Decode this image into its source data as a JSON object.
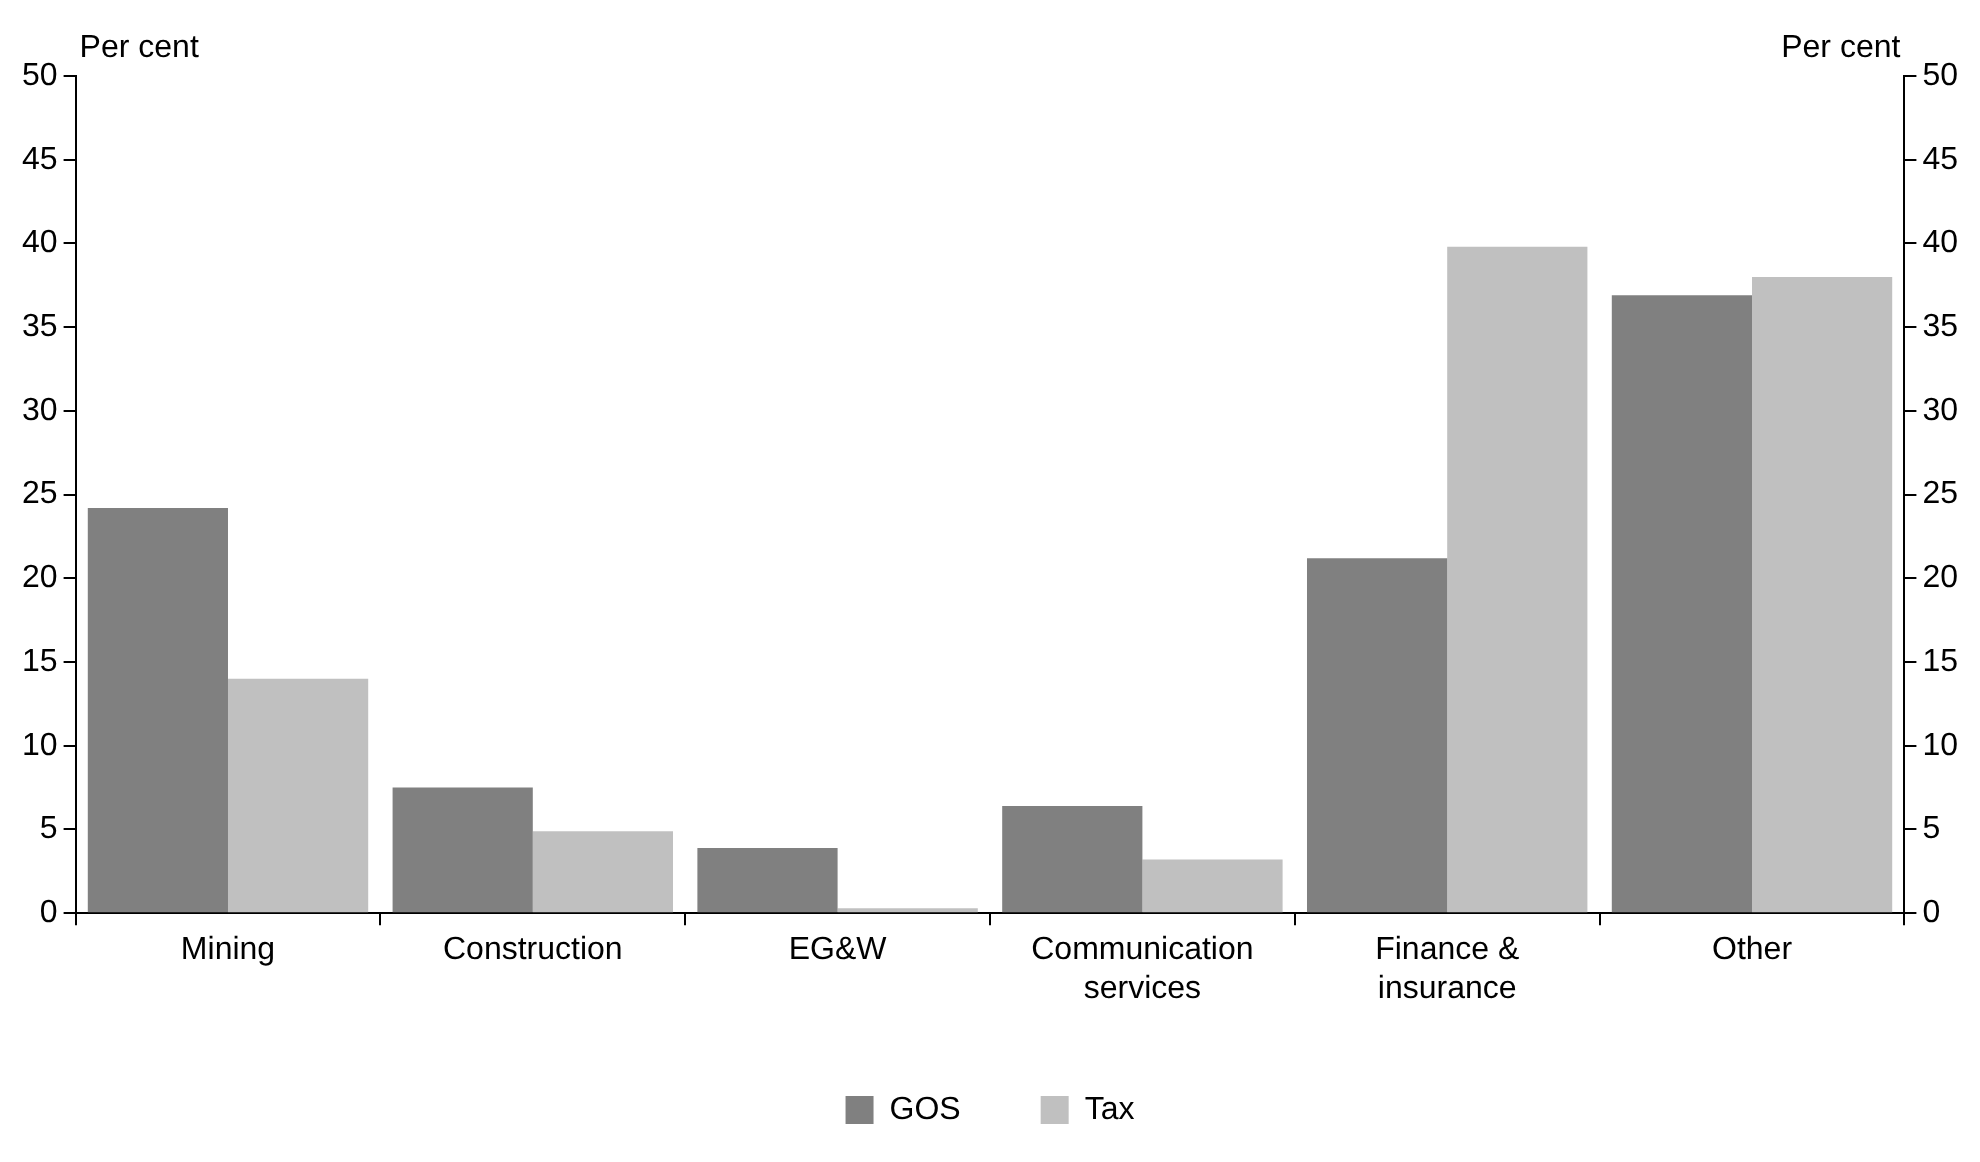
{
  "chart_data": {
    "type": "bar",
    "categories": [
      "Mining",
      "Construction",
      "EG&W",
      "Communication services",
      "Finance & insurance",
      "Other"
    ],
    "series": [
      {
        "name": "GOS",
        "color": "#808080",
        "values": [
          24.2,
          7.5,
          3.9,
          6.4,
          21.2,
          36.9
        ]
      },
      {
        "name": "Tax",
        "color": "#c0c0c0",
        "values": [
          14,
          4.9,
          0.3,
          3.2,
          39.8,
          38
        ]
      }
    ],
    "ylabel": "Per cent",
    "y2label": "Per cent",
    "ylim": [
      0,
      50
    ],
    "yticks": [
      0,
      5,
      10,
      15,
      20,
      25,
      30,
      35,
      40,
      45,
      50
    ],
    "y2lim": [
      0,
      50
    ],
    "y2ticks": [
      0,
      5,
      10,
      15,
      20,
      25,
      30,
      35,
      40,
      45,
      50
    ],
    "grid": false,
    "legend": "bottom"
  }
}
